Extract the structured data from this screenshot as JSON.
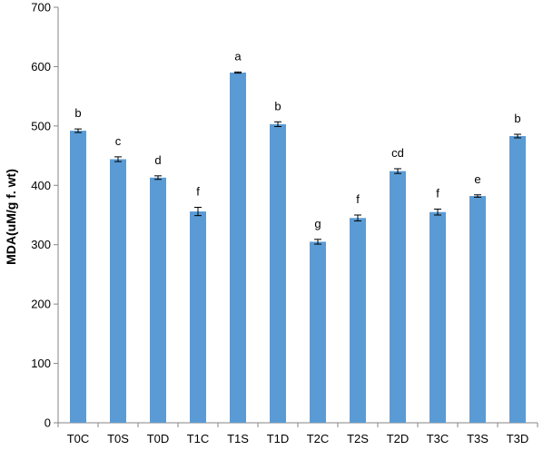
{
  "chart_data": {
    "type": "bar",
    "title": "",
    "xlabel": "",
    "ylabel": "MDA(uM/g f. wt)",
    "ylim": [
      0,
      700
    ],
    "yticks": [
      0,
      100,
      200,
      300,
      400,
      500,
      600,
      700
    ],
    "grid": false,
    "legend": "none",
    "bar_color": "#5B9BD5",
    "categories": [
      "T0C",
      "T0S",
      "T0D",
      "T1C",
      "T1S",
      "T1D",
      "T2C",
      "T2S",
      "T2D",
      "T3C",
      "T3S",
      "T3D"
    ],
    "values": [
      492,
      444,
      413,
      356,
      590,
      503,
      305,
      345,
      424,
      355,
      382,
      483
    ],
    "errors": [
      3,
      4,
      3,
      7,
      1,
      4,
      4,
      5,
      4,
      5,
      2,
      3
    ],
    "significance_labels": [
      "b",
      "c",
      "d",
      "f",
      "a",
      "b",
      "g",
      "f",
      "cd",
      "f",
      "e",
      "b"
    ]
  }
}
